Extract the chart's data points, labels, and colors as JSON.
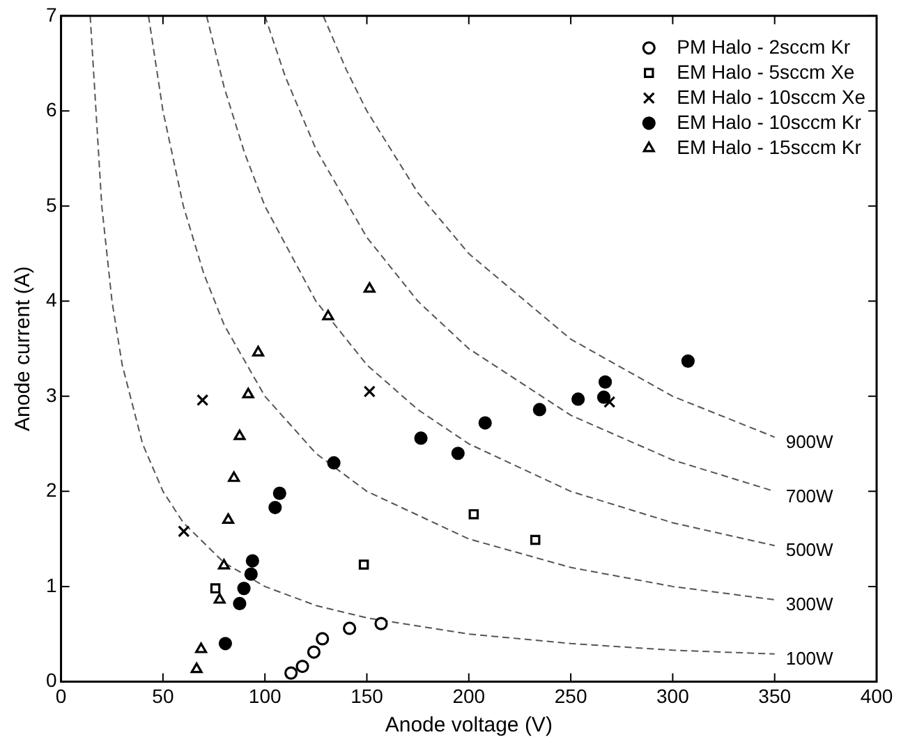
{
  "chart_data": {
    "type": "scatter",
    "xlabel": "Anode voltage (V)",
    "ylabel": "Anode current (A)",
    "xlim": [
      0,
      400
    ],
    "xticks": [
      0,
      50,
      100,
      150,
      200,
      250,
      300,
      350,
      400
    ],
    "ylim": [
      0,
      7
    ],
    "yticks": [
      0,
      1,
      2,
      3,
      4,
      5,
      6,
      7
    ],
    "grid": false,
    "legend": "top right",
    "series": [
      {
        "name": "PM Halo - 2sccm Kr",
        "color": "#000000",
        "marker": "circle_open",
        "x": [
          112.8,
          118.4,
          124,
          128.2,
          141.5,
          157
        ],
        "values": [
          0.09,
          0.16,
          0.31,
          0.45,
          0.56,
          0.61
        ]
      },
      {
        "name": "EM Halo - 5sccm Xe",
        "color": "#000000",
        "marker": "square_open",
        "x": [
          75.7,
          148.5,
          202.4,
          232.6
        ],
        "values": [
          0.98,
          1.23,
          1.76,
          1.49
        ]
      },
      {
        "name": "EM Halo - 10sccm Xe",
        "color": "#000000",
        "marker": "cross",
        "x": [
          60.2,
          69.4,
          151.3,
          269
        ],
        "values": [
          1.58,
          2.96,
          3.05,
          2.94
        ]
      },
      {
        "name": "EM Halo - 10sccm Kr",
        "color": "#000000",
        "marker": "circle",
        "x": [
          80.6,
          87.6,
          89.7,
          93.2,
          93.9,
          105,
          107.2,
          133.8,
          176.5,
          194.7,
          208,
          234.7,
          253.6,
          266.2,
          266.9,
          307.5
        ],
        "values": [
          0.4,
          0.82,
          0.98,
          1.13,
          1.27,
          1.83,
          1.98,
          2.3,
          2.56,
          2.4,
          2.72,
          2.86,
          2.97,
          2.99,
          3.15,
          3.37
        ]
      },
      {
        "name": "EM Halo - 15sccm Kr",
        "color": "#000000",
        "marker": "triangle_open",
        "x": [
          66.5,
          68.7,
          77.8,
          79.9,
          82,
          84.8,
          87.6,
          91.8,
          96.7,
          131,
          151.3
        ],
        "values": [
          0.13,
          0.34,
          0.86,
          1.22,
          1.7,
          2.14,
          2.58,
          3.02,
          3.46,
          3.84,
          4.13
        ]
      },
      {
        "type": "line",
        "name": "100W",
        "color": "#555555",
        "line_style": "dashed",
        "marker": "none",
        "x": [
          14.3,
          20,
          25,
          30,
          40,
          50,
          60,
          80,
          100,
          125,
          150,
          200,
          250,
          300,
          350
        ],
        "values": [
          7,
          5,
          4,
          3.33,
          2.5,
          2,
          1.67,
          1.25,
          1,
          0.8,
          0.67,
          0.5,
          0.4,
          0.33,
          0.29
        ]
      },
      {
        "type": "line",
        "name": "300W",
        "color": "#555555",
        "line_style": "dashed",
        "marker": "none",
        "x": [
          42.9,
          50,
          60,
          70,
          80,
          100,
          125,
          150,
          200,
          250,
          300,
          350
        ],
        "values": [
          7,
          6,
          5,
          4.29,
          3.75,
          3,
          2.4,
          2,
          1.5,
          1.2,
          1,
          0.86
        ]
      },
      {
        "type": "line",
        "name": "500W",
        "color": "#555555",
        "line_style": "dashed",
        "marker": "none",
        "x": [
          71.4,
          80,
          90,
          100,
          125,
          150,
          175,
          200,
          250,
          300,
          350
        ],
        "values": [
          7,
          6.25,
          5.56,
          5,
          4,
          3.33,
          2.86,
          2.5,
          2,
          1.67,
          1.43
        ]
      },
      {
        "type": "line",
        "name": "700W",
        "color": "#555555",
        "line_style": "dashed",
        "marker": "none",
        "x": [
          100,
          110,
          125,
          150,
          175,
          200,
          250,
          300,
          350
        ],
        "values": [
          7,
          6.36,
          5.6,
          4.67,
          4,
          3.5,
          2.8,
          2.33,
          2
        ]
      },
      {
        "type": "line",
        "name": "900W",
        "color": "#555555",
        "line_style": "dashed",
        "marker": "none",
        "x": [
          128.6,
          140,
          150,
          175,
          200,
          250,
          300,
          350
        ],
        "values": [
          7,
          6.43,
          6,
          5.14,
          4.5,
          3.6,
          3,
          2.57
        ]
      }
    ]
  }
}
